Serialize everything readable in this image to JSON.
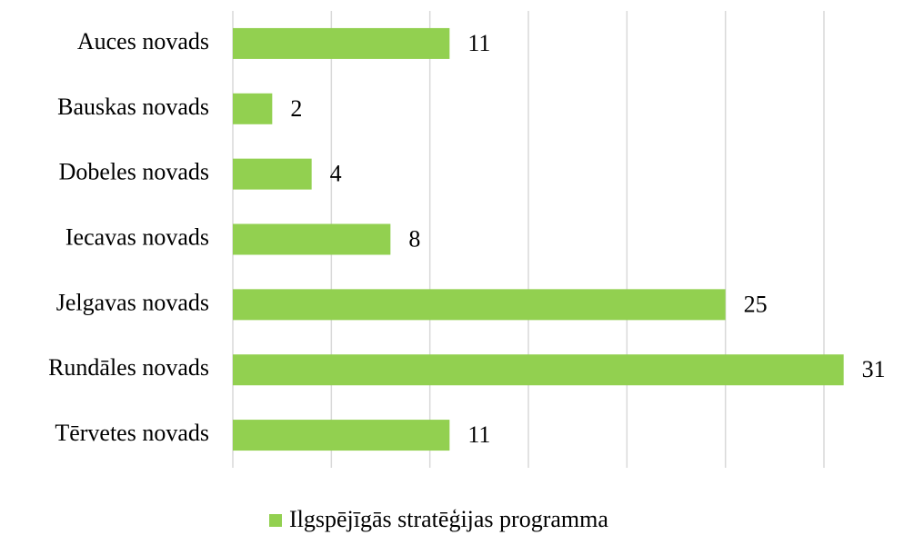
{
  "chart_data": {
    "type": "barh",
    "categories": [
      "Auces novads",
      "Bauskas novads",
      "Dobeles novads",
      "Iecavas novads",
      "Jelgavas novads",
      "Rundāles novads",
      "Tērvetes novads"
    ],
    "series": [
      {
        "name": "Ilgspējīgās stratēģijas programma",
        "color": "#92d050",
        "values": [
          11,
          2,
          4,
          8,
          25,
          31,
          11
        ]
      }
    ],
    "xlim": [
      0,
      30
    ],
    "xticks": [
      0,
      5,
      10,
      15,
      20,
      25,
      30
    ],
    "grid": true,
    "legend": "bottom"
  }
}
